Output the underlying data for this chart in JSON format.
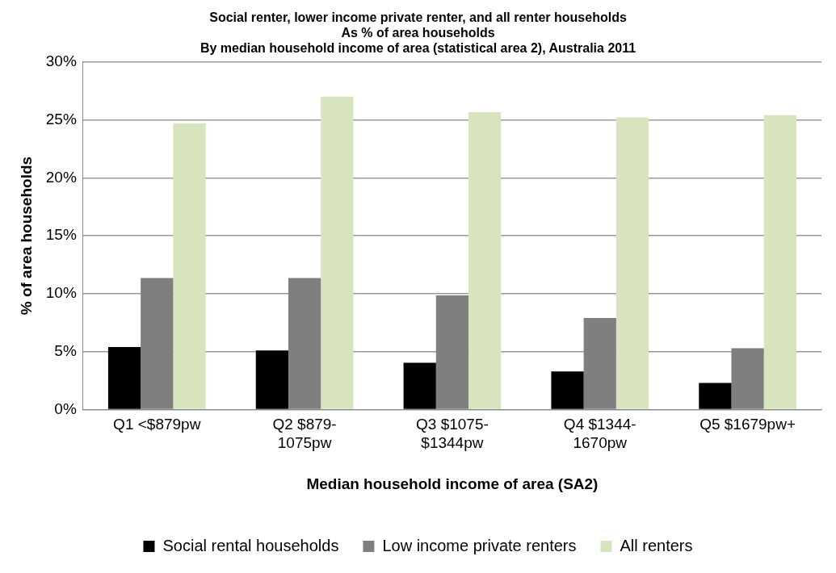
{
  "chart_data": {
    "type": "bar",
    "title": "Social renter, lower income private renter, and all renter households\nAs % of area households\nBy median household income of area (statistical area 2), Australia 2011",
    "xlabel": "Median household income of area (SA2)",
    "ylabel": "% of area households",
    "categories": [
      "Q1 <$879pw",
      "Q2 $879-1075pw",
      "Q3 $1075-$1344pw",
      "Q4 $1344-1670pw",
      "Q5 $1679pw+"
    ],
    "series": [
      {
        "name": "Social rental households",
        "color": "#000000",
        "values": [
          5.4,
          5.1,
          4.05,
          3.3,
          2.3
        ]
      },
      {
        "name": "Low income private renters",
        "color": "#7f7f7f",
        "values": [
          11.35,
          11.35,
          9.85,
          7.9,
          5.3
        ]
      },
      {
        "name": "All renters",
        "color": "#d7e4bd",
        "values": [
          24.7,
          27.0,
          25.65,
          25.2,
          25.4
        ]
      }
    ],
    "ylim": [
      0,
      30
    ],
    "yticks": [
      {
        "value": 0,
        "label": "0%"
      },
      {
        "value": 5,
        "label": "5%"
      },
      {
        "value": 10,
        "label": "10%"
      },
      {
        "value": 15,
        "label": "15%"
      },
      {
        "value": 20,
        "label": "20%"
      },
      {
        "value": 25,
        "label": "25%"
      },
      {
        "value": 30,
        "label": "30%"
      }
    ],
    "grid": "y",
    "legend": "bottom"
  }
}
